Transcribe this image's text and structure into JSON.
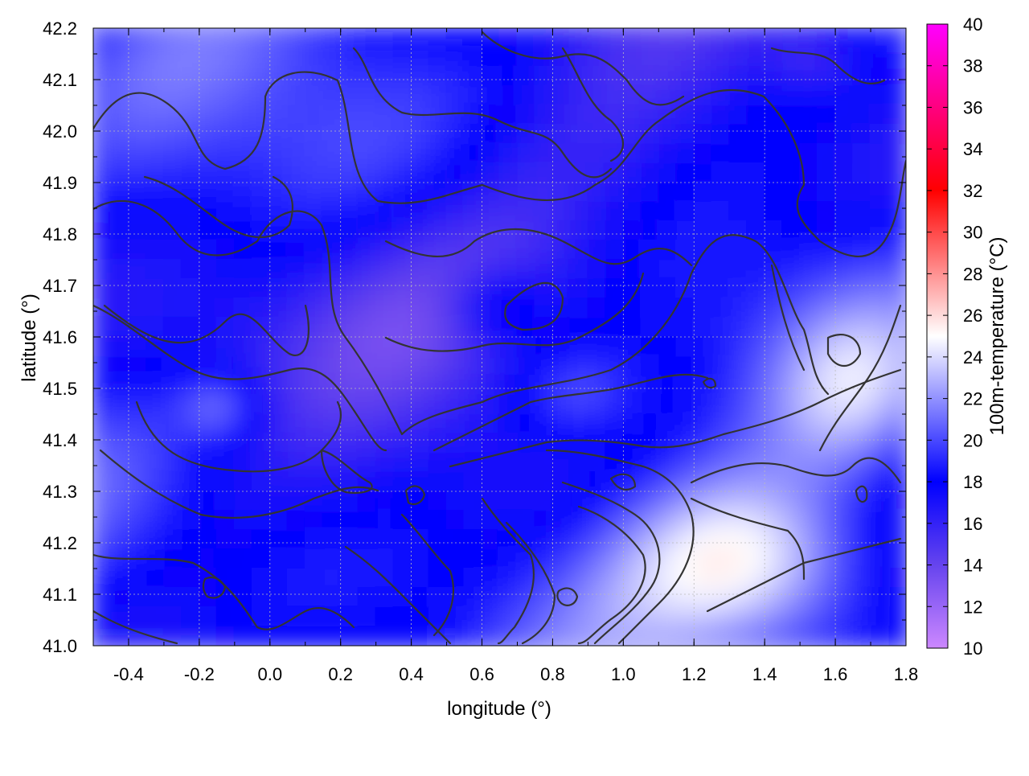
{
  "chart_data": {
    "type": "heatmap",
    "title": "",
    "xlabel": "longitude (°)",
    "ylabel": "latitude (°)",
    "colorbar_label": "100m-temperature (°C)",
    "xlim": [
      -0.5,
      1.8
    ],
    "ylim": [
      41.0,
      42.2
    ],
    "x_ticks": [
      "-0.4",
      "-0.2",
      "0.0",
      "0.2",
      "0.4",
      "0.6",
      "0.8",
      "1.0",
      "1.2",
      "1.4",
      "1.6",
      "1.8"
    ],
    "x_tick_values": [
      -0.4,
      -0.2,
      0.0,
      0.2,
      0.4,
      0.6,
      0.8,
      1.0,
      1.2,
      1.4,
      1.6,
      1.8
    ],
    "y_ticks": [
      "41.0",
      "41.1",
      "41.2",
      "41.3",
      "41.4",
      "41.5",
      "41.6",
      "41.7",
      "41.8",
      "41.9",
      "42.0",
      "42.1",
      "42.2"
    ],
    "y_tick_values": [
      41.0,
      41.1,
      41.2,
      41.3,
      41.4,
      41.5,
      41.6,
      41.7,
      41.8,
      41.9,
      42.0,
      42.1,
      42.2
    ],
    "colorbar_range": [
      10,
      40
    ],
    "colorbar_ticks": [
      "10",
      "12",
      "14",
      "16",
      "18",
      "20",
      "22",
      "24",
      "26",
      "28",
      "30",
      "32",
      "34",
      "36",
      "38",
      "40"
    ],
    "colorbar_tick_values": [
      10,
      12,
      14,
      16,
      18,
      20,
      22,
      24,
      26,
      28,
      30,
      32,
      34,
      36,
      38,
      40
    ],
    "colormap": [
      {
        "value": 10,
        "color": "#cc88ff"
      },
      {
        "value": 14,
        "color": "#6644ee"
      },
      {
        "value": 18,
        "color": "#0000ff"
      },
      {
        "value": 25,
        "color": "#ffffff"
      },
      {
        "value": 32,
        "color": "#ff0000"
      },
      {
        "value": 40,
        "color": "#ff00ff"
      }
    ],
    "grid": true,
    "contours": true,
    "field_description": "100 m temperature mostly 16–22 °C over the region; warmer (22–27 °C) patches in the south-east near 1.0–1.8° longitude, 41.0–41.4° latitude"
  },
  "colors": {
    "contour": "#333333",
    "grid": "#bbbbbb",
    "axis": "#000000"
  }
}
